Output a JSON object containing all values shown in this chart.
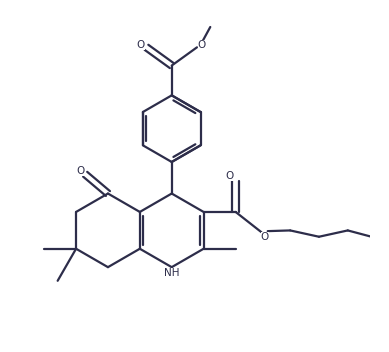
{
  "background_color": "#ffffff",
  "line_color": "#2d2d4a",
  "line_width": 1.6,
  "figsize": [
    3.89,
    3.52
  ],
  "dpi": 100,
  "xlim": [
    0.0,
    1.0
  ],
  "ylim": [
    0.0,
    1.0
  ]
}
